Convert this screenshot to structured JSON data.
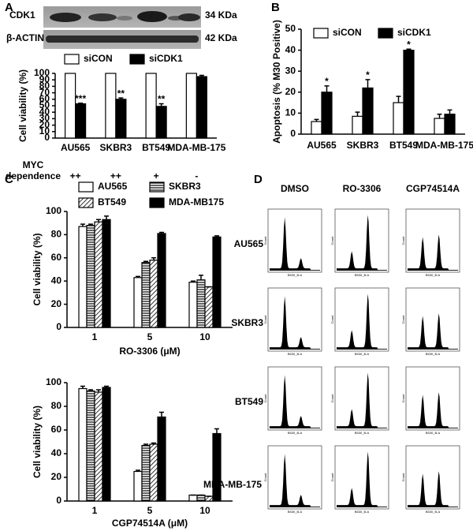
{
  "panel_labels": [
    "A",
    "B",
    "C",
    "D"
  ],
  "blot": {
    "bands": [
      "CDK1",
      "β-ACTIN"
    ],
    "sizes": [
      "34 KDa",
      "42 KDa"
    ]
  },
  "chart_data": [
    {
      "type": "bar",
      "y_label": "Cell viability (%)",
      "categories": [
        "AU565",
        "SKBR3",
        "BT549",
        "MDA-MB-175"
      ],
      "series": [
        {
          "name": "siCON",
          "color": "#ffffff",
          "values": [
            100,
            100,
            100,
            100
          ]
        },
        {
          "name": "siCDK1",
          "color": "#000000",
          "values": [
            53,
            60,
            49,
            95
          ],
          "errors": [
            1,
            2,
            4,
            2
          ]
        }
      ],
      "annotations": [
        "***",
        "**",
        "**",
        null
      ],
      "ylim": [
        0,
        100
      ],
      "yticks": [
        0,
        10,
        20,
        30,
        40,
        50,
        60,
        70,
        80,
        90,
        100
      ],
      "legend": "top",
      "row_label": [
        "MYC",
        "dependence"
      ],
      "row_values": [
        "++",
        "++",
        "+",
        "-"
      ]
    },
    {
      "type": "bar",
      "y_label": "Apoptosis (% M30 Positive)",
      "categories": [
        "AU565",
        "SKBR3",
        "BT549",
        "MDA-MB-175"
      ],
      "series": [
        {
          "name": "siCON",
          "color": "#ffffff",
          "values": [
            6,
            8.5,
            15,
            7.5
          ],
          "errors": [
            1,
            2,
            3,
            2
          ]
        },
        {
          "name": "siCDK1",
          "color": "#000000",
          "values": [
            20,
            22,
            40,
            9.5
          ],
          "errors": [
            3,
            4,
            0.5,
            2
          ]
        }
      ],
      "annotations": [
        "*",
        "*",
        "*",
        null
      ],
      "ylim": [
        0,
        50
      ],
      "yticks": [
        0,
        10,
        20,
        30,
        40,
        50
      ],
      "legend": "top"
    },
    {
      "type": "bar",
      "y_label": "Cell viability (%)",
      "x_label": "RO-3306 (μM)",
      "categories": [
        "1",
        "5",
        "10"
      ],
      "series": [
        {
          "name": "AU565",
          "color": "#ffffff",
          "values": [
            87,
            43,
            39
          ],
          "errors": [
            2,
            1,
            1
          ]
        },
        {
          "name": "SKBR3",
          "color": "#000000",
          "pattern": "horizontal-stripes",
          "values": [
            88,
            56,
            41
          ],
          "errors": [
            1,
            1,
            4
          ]
        },
        {
          "name": "BT549",
          "color": "#000000",
          "pattern": "diagonal-stripes",
          "values": [
            91,
            58,
            35
          ],
          "errors": [
            2,
            2,
            0
          ]
        },
        {
          "name": "MDA-MB175",
          "color": "#000000",
          "values": [
            93,
            81,
            78
          ],
          "errors": [
            3,
            1,
            1
          ]
        }
      ],
      "ylim": [
        0,
        100
      ],
      "yticks": [
        0,
        20,
        40,
        60,
        80,
        100
      ],
      "legend": "top"
    },
    {
      "type": "bar",
      "y_label": "Cell viability (%)",
      "x_label": "CGP74514A (μM)",
      "categories": [
        "1",
        "5",
        "10"
      ],
      "series": [
        {
          "color": "#ffffff",
          "values": [
            95,
            25,
            5
          ],
          "errors": [
            2,
            1,
            0
          ]
        },
        {
          "color": "#000000",
          "pattern": "horizontal-stripes",
          "values": [
            93,
            47,
            5
          ],
          "errors": [
            1,
            1,
            0
          ]
        },
        {
          "color": "#000000",
          "pattern": "diagonal-stripes",
          "values": [
            92,
            48,
            4
          ],
          "errors": [
            2,
            1,
            0
          ]
        },
        {
          "color": "#000000",
          "values": [
            96,
            71,
            57
          ],
          "errors": [
            1,
            4,
            4
          ]
        }
      ],
      "ylim": [
        0,
        100
      ],
      "yticks": [
        0,
        20,
        40,
        60,
        80,
        100
      ]
    }
  ],
  "flow": {
    "columns": [
      "DMSO",
      "RO-3306",
      "CGP74514A"
    ],
    "rows": [
      "AU565",
      "SKBR3",
      "BT549",
      "MDA-MB-175"
    ],
    "x_axis": "B530_B-A",
    "y_axis": "Count"
  }
}
